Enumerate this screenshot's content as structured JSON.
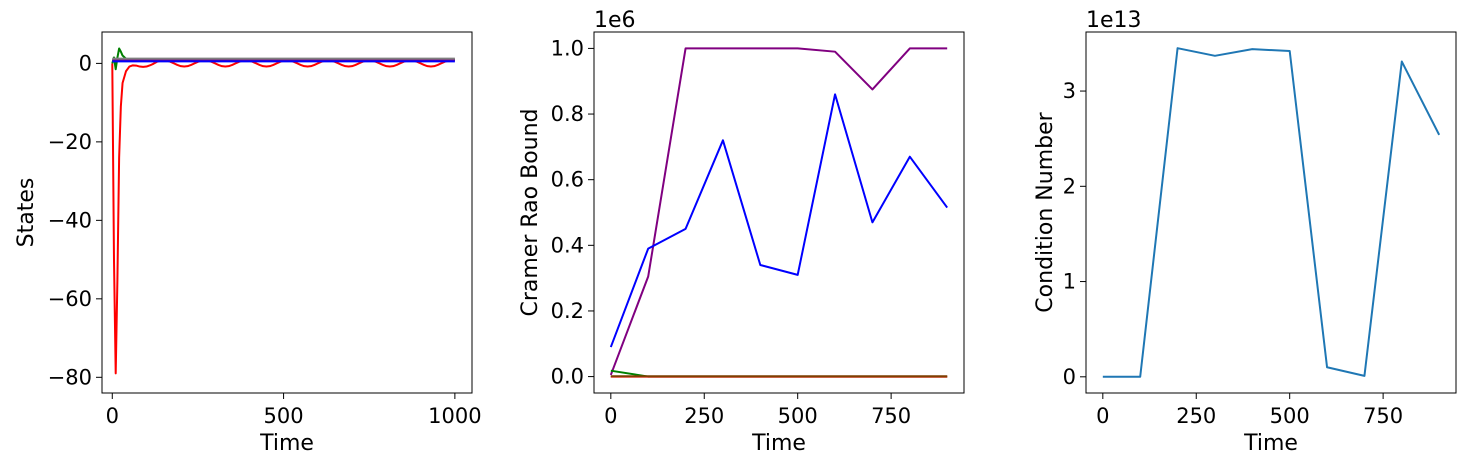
{
  "chart_data": [
    {
      "type": "line",
      "title": "",
      "xlabel": "Time",
      "ylabel": "States",
      "xlim": [
        -30,
        1050
      ],
      "ylim": [
        -84,
        8
      ],
      "xticks": [
        0,
        500,
        1000
      ],
      "xtick_labels": [
        "0",
        "500",
        "1000"
      ],
      "yticks": [
        0,
        -20,
        -40,
        -60,
        -80
      ],
      "ytick_labels": [
        "0",
        "−20",
        "−40",
        "−60",
        "−80"
      ],
      "offset_text": "",
      "series": [
        {
          "color": "#ff0000",
          "x": [
            0,
            5,
            10,
            15,
            20,
            25,
            30,
            40,
            50,
            60,
            70,
            80,
            90,
            100,
            110,
            120,
            130,
            140,
            150,
            160,
            170,
            180,
            190,
            200,
            210,
            220,
            230,
            240,
            250,
            260,
            270,
            280,
            290,
            300,
            310,
            320,
            330,
            340,
            350,
            360,
            370,
            380,
            390,
            400,
            410,
            420,
            430,
            440,
            450,
            460,
            470,
            480,
            490,
            500,
            510,
            520,
            530,
            540,
            550,
            560,
            570,
            580,
            590,
            600,
            610,
            620,
            630,
            640,
            650,
            660,
            670,
            680,
            690,
            700,
            710,
            720,
            730,
            740,
            750,
            760,
            770,
            780,
            790,
            800,
            810,
            820,
            830,
            840,
            850,
            860,
            870,
            880,
            890,
            900,
            910,
            920,
            930,
            940,
            950,
            960,
            970,
            980,
            990,
            1000
          ],
          "y": [
            0,
            -50,
            -79,
            -55,
            -24,
            -11,
            -5,
            -2,
            -0.8,
            -0.5,
            -0.56,
            -0.8,
            -0.9,
            -0.8,
            -0.5,
            -0.1,
            0.4,
            0.7,
            0.8,
            0.7,
            0.4,
            0,
            -0.4,
            -0.7,
            -0.8,
            -0.7,
            -0.4,
            0,
            0.4,
            0.7,
            0.8,
            0.7,
            0.4,
            0,
            -0.4,
            -0.7,
            -0.8,
            -0.7,
            -0.4,
            0,
            0.4,
            0.7,
            0.8,
            0.7,
            0.4,
            0,
            -0.4,
            -0.7,
            -0.8,
            -0.7,
            -0.4,
            0,
            0.4,
            0.7,
            0.8,
            0.7,
            0.4,
            0,
            -0.4,
            -0.7,
            -0.8,
            -0.7,
            -0.4,
            0,
            0.4,
            0.7,
            0.8,
            0.7,
            0.4,
            0,
            -0.4,
            -0.7,
            -0.8,
            -0.7,
            -0.4,
            0,
            0.4,
            0.7,
            0.8,
            0.7,
            0.4,
            0,
            -0.4,
            -0.7,
            -0.8,
            -0.7,
            -0.4,
            0,
            0.4,
            0.7,
            0.8,
            0.7,
            0.4,
            0,
            -0.4,
            -0.7,
            -0.8,
            -0.7,
            -0.4,
            0,
            0.4,
            0.7,
            0.8,
            0.7
          ]
        },
        {
          "color": "#008000",
          "x": [
            0,
            5,
            10,
            15,
            20,
            25,
            30,
            40,
            60,
            80,
            100,
            1000
          ],
          "y": [
            0,
            1.5,
            -1.5,
            1.5,
            3.8,
            3,
            2,
            1.2,
            0.8,
            0.9,
            0.9,
            0.9
          ]
        },
        {
          "color": "#800080",
          "x": [
            0,
            1000
          ],
          "y": [
            1,
            1
          ]
        },
        {
          "color": "#0000ff",
          "x": [
            0,
            1000
          ],
          "y": [
            0.5,
            0.5
          ]
        },
        {
          "color": "#7f7f7f",
          "x": [
            0,
            1000
          ],
          "y": [
            1.2,
            1.2
          ]
        }
      ]
    },
    {
      "type": "line",
      "title": "",
      "xlabel": "Time",
      "ylabel": "Cramer Rao Bound",
      "xlim": [
        -45,
        945
      ],
      "ylim": [
        -0.05,
        1.05
      ],
      "xticks": [
        0,
        250,
        500,
        750
      ],
      "xtick_labels": [
        "0",
        "250",
        "500",
        "750"
      ],
      "yticks": [
        0,
        0.2,
        0.4,
        0.6,
        0.8,
        1.0
      ],
      "ytick_labels": [
        "0.0",
        "0.2",
        "0.4",
        "0.6",
        "0.8",
        "1.0"
      ],
      "offset_text": "1e6",
      "series": [
        {
          "color": "#800080",
          "x": [
            0,
            100,
            200,
            300,
            400,
            500,
            600,
            700,
            800,
            900
          ],
          "y": [
            0.005,
            0.305,
            1.0,
            1.0,
            1.0,
            1.0,
            0.99,
            0.875,
            1.0,
            1.0
          ]
        },
        {
          "color": "#0000ff",
          "x": [
            0,
            100,
            200,
            300,
            400,
            500,
            600,
            700,
            800,
            900
          ],
          "y": [
            0.09,
            0.39,
            0.45,
            0.72,
            0.34,
            0.31,
            0.86,
            0.47,
            0.67,
            0.515
          ]
        },
        {
          "color": "#008000",
          "x": [
            0,
            100,
            200,
            300,
            400,
            500,
            600,
            700,
            800,
            900
          ],
          "y": [
            0.018,
            0.0,
            0.0,
            0.0,
            0.0,
            0.0,
            0.0,
            0.0,
            0.0,
            0.0
          ]
        },
        {
          "color": "#ff0000",
          "x": [
            0,
            100,
            200,
            300,
            400,
            500,
            600,
            700,
            800,
            900
          ],
          "y": [
            0.0,
            0.0,
            0.0,
            0.0,
            0.0,
            0.0,
            0.0,
            0.0,
            0.0,
            0.0
          ]
        },
        {
          "color": "#7f3f00",
          "x": [
            0,
            100,
            200,
            300,
            400,
            500,
            600,
            700,
            800,
            900
          ],
          "y": [
            0.001,
            0.001,
            0.001,
            0.001,
            0.001,
            0.001,
            0.001,
            0.001,
            0.001,
            0.001
          ]
        }
      ]
    },
    {
      "type": "line",
      "title": "",
      "xlabel": "Time",
      "ylabel": "Condition Number",
      "xlim": [
        -45,
        945
      ],
      "ylim": [
        -0.17,
        3.62
      ],
      "xticks": [
        0,
        250,
        500,
        750
      ],
      "xtick_labels": [
        "0",
        "250",
        "500",
        "750"
      ],
      "yticks": [
        0,
        1,
        2,
        3
      ],
      "ytick_labels": [
        "0",
        "1",
        "2",
        "3"
      ],
      "offset_text": "1e13",
      "series": [
        {
          "color": "#1f77b4",
          "x": [
            0,
            100,
            200,
            300,
            400,
            500,
            600,
            700,
            800,
            900
          ],
          "y": [
            0.0,
            0.0,
            3.45,
            3.37,
            3.44,
            3.42,
            0.1,
            0.01,
            3.31,
            2.54
          ]
        }
      ]
    }
  ]
}
